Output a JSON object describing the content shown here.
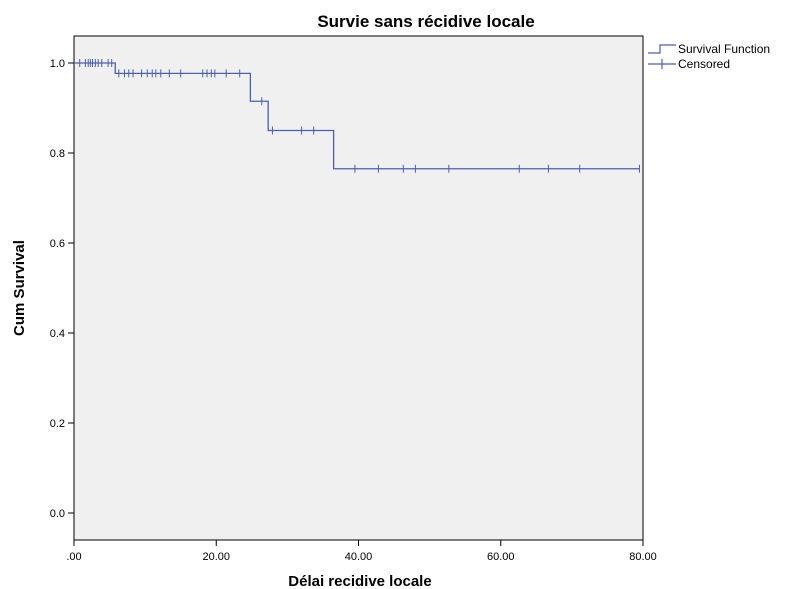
{
  "chart_data": {
    "type": "line",
    "title": "Survie sans récidive locale",
    "xlabel": "Délai recidive locale",
    "ylabel": "Cum Survival",
    "xlim": [
      0,
      80
    ],
    "ylim": [
      -0.06,
      1.06
    ],
    "x_ticks": [
      0,
      20,
      40,
      60,
      80
    ],
    "x_tick_labels": [
      ".00",
      "20.00",
      "40.00",
      "60.00",
      "80.00"
    ],
    "y_ticks": [
      0,
      0.2,
      0.4,
      0.6,
      0.8,
      1.0
    ],
    "y_tick_labels": [
      "0.0",
      "0.2",
      "0.4",
      "0.6",
      "0.8",
      "1.0"
    ],
    "grid": false,
    "legend_position": "top-right outside",
    "colors": {
      "line": "#4a5fb5",
      "plot_background": "#f0f0f0",
      "axis": "#000000"
    },
    "legend": [
      {
        "label": "Survival Function",
        "marker": "step"
      },
      {
        "label": "Censored",
        "marker": "plus"
      }
    ],
    "series": [
      {
        "name": "Survival Function",
        "type": "step",
        "x": [
          0,
          5.8,
          24.8,
          27.3,
          36.5,
          79.5
        ],
        "y": [
          1.0,
          0.977,
          0.915,
          0.85,
          0.765,
          0.765
        ]
      },
      {
        "name": "Censored",
        "type": "scatter",
        "marker": "plus",
        "points": [
          [
            0.8,
            1.0
          ],
          [
            1.6,
            1.0
          ],
          [
            2.0,
            1.0
          ],
          [
            2.3,
            1.0
          ],
          [
            2.6,
            1.0
          ],
          [
            3.0,
            1.0
          ],
          [
            3.4,
            1.0
          ],
          [
            3.9,
            1.0
          ],
          [
            4.8,
            1.0
          ],
          [
            5.3,
            1.0
          ],
          [
            6.3,
            0.977
          ],
          [
            7.1,
            0.977
          ],
          [
            7.7,
            0.977
          ],
          [
            8.3,
            0.977
          ],
          [
            9.5,
            0.977
          ],
          [
            10.3,
            0.977
          ],
          [
            11.0,
            0.977
          ],
          [
            11.5,
            0.977
          ],
          [
            12.2,
            0.977
          ],
          [
            13.4,
            0.977
          ],
          [
            15.0,
            0.977
          ],
          [
            18.1,
            0.977
          ],
          [
            18.7,
            0.977
          ],
          [
            19.3,
            0.977
          ],
          [
            19.8,
            0.977
          ],
          [
            21.4,
            0.977
          ],
          [
            23.3,
            0.977
          ],
          [
            26.4,
            0.915
          ],
          [
            27.9,
            0.85
          ],
          [
            32.0,
            0.85
          ],
          [
            33.7,
            0.85
          ],
          [
            39.5,
            0.765
          ],
          [
            42.8,
            0.765
          ],
          [
            46.3,
            0.765
          ],
          [
            48.0,
            0.765
          ],
          [
            52.7,
            0.765
          ],
          [
            62.6,
            0.765
          ],
          [
            66.7,
            0.765
          ],
          [
            71.1,
            0.765
          ],
          [
            79.5,
            0.765
          ]
        ]
      }
    ]
  }
}
